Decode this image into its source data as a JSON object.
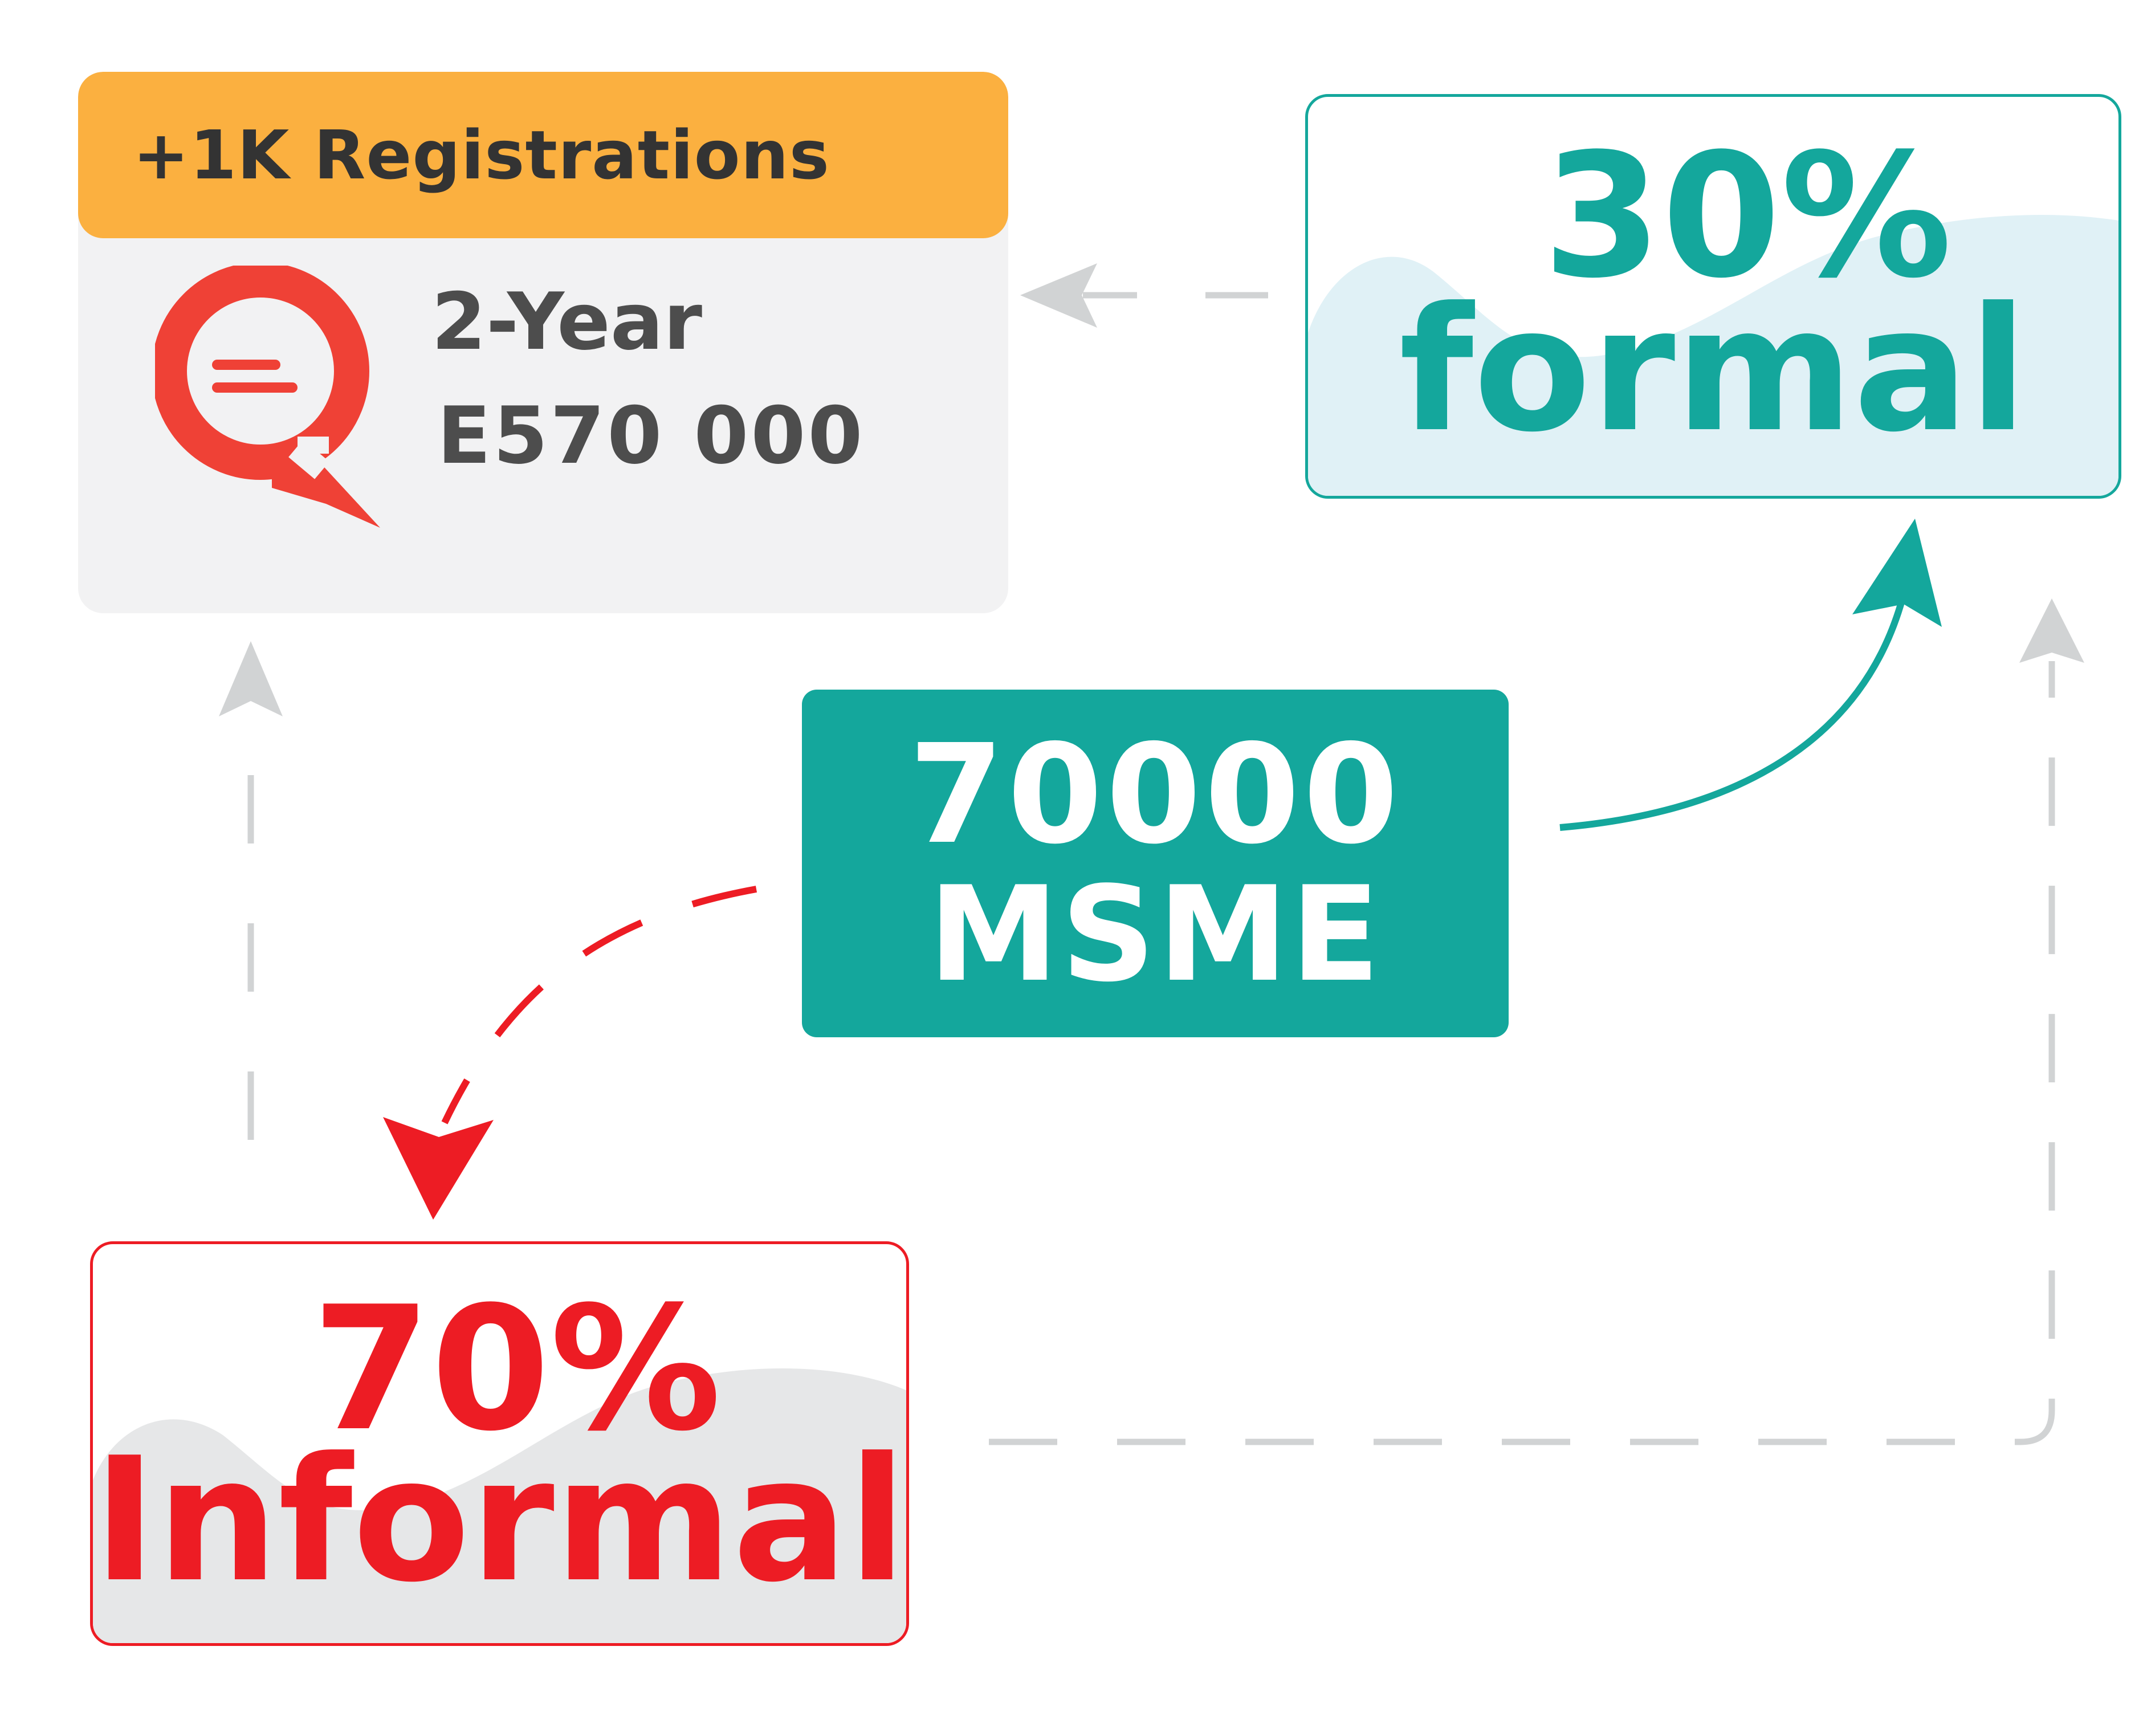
{
  "registrations_card": {
    "header": "+1K Registrations",
    "duration": "2-Year",
    "amount": "E570 000",
    "icon": "chat-search-icon"
  },
  "formal_card": {
    "percent": "30%",
    "label": "formal"
  },
  "msme_box": {
    "count": "70000",
    "label": "MSME"
  },
  "informal_card": {
    "percent": "70%",
    "label": "Informal"
  },
  "colors": {
    "teal": "#14a79c",
    "red": "#ed1c24",
    "orange": "#fbb040",
    "gray_text": "#4d4d4d",
    "connector_gray": "#d1d3d4"
  }
}
